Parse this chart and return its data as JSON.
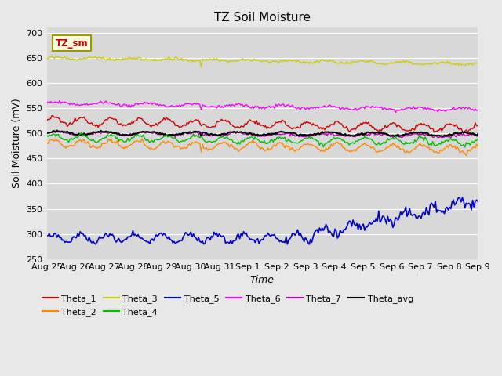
{
  "title": "TZ Soil Moisture",
  "xlabel": "Time",
  "ylabel": "Soil Moisture (mV)",
  "ylim": [
    250,
    710
  ],
  "yticks": [
    250,
    300,
    350,
    400,
    450,
    500,
    550,
    600,
    650,
    700
  ],
  "bg_color": "#e8e8e8",
  "plot_bg": "#d8d8d8",
  "x_labels": [
    "Aug 25",
    "Aug 26",
    "Aug 27",
    "Aug 28",
    "Aug 29",
    "Aug 30",
    "Aug 31",
    "Sep 1",
    "Sep 2",
    "Sep 3",
    "Sep 4",
    "Sep 5",
    "Sep 6",
    "Sep 7",
    "Sep 8",
    "Sep 9"
  ],
  "n_points": 336,
  "spike_index": 120,
  "series_colors": {
    "Theta_1": "#cc0000",
    "Theta_2": "#ff8800",
    "Theta_3": "#cccc00",
    "Theta_4": "#00bb00",
    "Theta_5": "#0000cc",
    "Theta_6": "#ff00ff",
    "Theta_7": "#bb00bb",
    "Theta_avg": "#000000"
  },
  "legend_order": [
    "Theta_1",
    "Theta_2",
    "Theta_3",
    "Theta_4",
    "Theta_5",
    "Theta_6",
    "Theta_7",
    "Theta_avg"
  ]
}
